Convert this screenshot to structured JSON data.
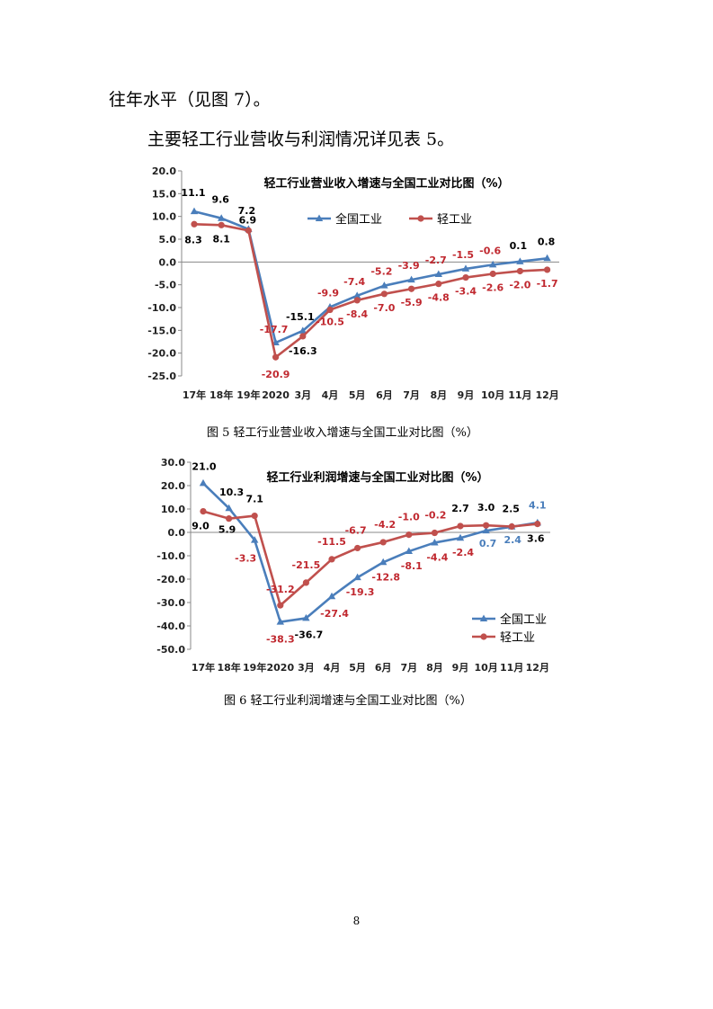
{
  "paragraphs": {
    "p1": "往年水平（见图 7）。",
    "p2": "主要轻工行业营收与利润情况详见表 5。"
  },
  "captions": {
    "fig5": "图 5   轻工行业营业收入增速与全国工业对比图（%）",
    "fig6": "图 6   轻工行业利润增速与全国工业对比图（%）"
  },
  "page_number": "8",
  "chart_data": [
    {
      "type": "line",
      "title": "轻工行业营业收入增速与全国工业对比图（%）",
      "categories": [
        "17年",
        "18年",
        "19年",
        "2020",
        "3月",
        "4月",
        "5月",
        "6月",
        "7月",
        "8月",
        "9月",
        "10月",
        "11月",
        "12月"
      ],
      "ylim": [
        -25,
        20
      ],
      "yticks": [
        "20.0",
        "15.0",
        "10.0",
        "5.0",
        "0.0",
        "-5.0",
        "-10.0",
        "-15.0",
        "-20.0",
        "-25.0"
      ],
      "legend": "top-center",
      "series": [
        {
          "name": "全国工业",
          "color": "#4a7ebb",
          "marker": "triangle",
          "values": [
            11.1,
            9.6,
            7.2,
            -17.7,
            -15.1,
            -9.9,
            -7.4,
            -5.2,
            -3.9,
            -2.7,
            -1.5,
            -0.6,
            0.1,
            0.8
          ],
          "labels": [
            "11.1",
            "9.6",
            "7.2",
            "-17.7",
            "-15.1",
            "-9.9",
            "-7.4",
            "-5.2",
            "-3.9",
            "-2.7",
            "-1.5",
            "-0.6",
            "0.1",
            "0.8"
          ],
          "label_colors": [
            "#000000",
            "#000000",
            "#000000",
            "#c0282f",
            "#000000",
            "#c0282f",
            "#c0282f",
            "#c0282f",
            "#c0282f",
            "#c0282f",
            "#c0282f",
            "#c0282f",
            "#000000",
            "#000000"
          ]
        },
        {
          "name": "轻工业",
          "color": "#c0504d",
          "marker": "circle",
          "values": [
            8.3,
            8.1,
            6.9,
            -20.9,
            -16.3,
            -10.5,
            -8.4,
            -7.0,
            -5.9,
            -4.8,
            -3.4,
            -2.6,
            -2.0,
            -1.7
          ],
          "labels": [
            "8.3",
            "8.1",
            "6.9",
            "-20.9",
            "-16.3",
            "-10.5",
            "-8.4",
            "-7.0",
            "-5.9",
            "-4.8",
            "-3.4",
            "-2.6",
            "-2.0",
            "-1.7"
          ],
          "label_colors": [
            "#000000",
            "#000000",
            "#000000",
            "#c0282f",
            "#000000",
            "#c0282f",
            "#c0282f",
            "#c0282f",
            "#c0282f",
            "#c0282f",
            "#c0282f",
            "#c0282f",
            "#c0282f",
            "#c0282f"
          ]
        }
      ]
    },
    {
      "type": "line",
      "title": "轻工行业利润增速与全国工业对比图（%）",
      "categories": [
        "17年",
        "18年",
        "19年",
        "2020",
        "3月",
        "4月",
        "5月",
        "6月",
        "7月",
        "8月",
        "9月",
        "10月",
        "11月",
        "12月"
      ],
      "ylim": [
        -50,
        30
      ],
      "yticks": [
        "30.0",
        "20.0",
        "10.0",
        "0.0",
        "-10.0",
        "-20.0",
        "-30.0",
        "-40.0",
        "-50.0"
      ],
      "legend": "bottom-right",
      "series": [
        {
          "name": "全国工业",
          "color": "#4a7ebb",
          "marker": "triangle",
          "values": [
            21.0,
            10.3,
            -3.3,
            -38.3,
            -36.7,
            -27.4,
            -19.3,
            -12.8,
            -8.1,
            -4.4,
            -2.4,
            0.7,
            2.4,
            4.1
          ],
          "labels": [
            "21.0",
            "10.3",
            "-3.3",
            "-38.3",
            "-36.7",
            "-27.4",
            "-19.3",
            "-12.8",
            "-8.1",
            "-4.4",
            "-2.4",
            "0.7",
            "2.4",
            "4.1"
          ],
          "label_colors": [
            "#000000",
            "#000000",
            "#c0282f",
            "#c0282f",
            "#000000",
            "#c0282f",
            "#c0282f",
            "#c0282f",
            "#c0282f",
            "#c0282f",
            "#c0282f",
            "#4a7ebb",
            "#4a7ebb",
            "#4a7ebb"
          ]
        },
        {
          "name": "轻工业",
          "color": "#c0504d",
          "marker": "circle",
          "values": [
            9.0,
            5.9,
            7.1,
            -31.2,
            -21.5,
            -11.5,
            -6.7,
            -4.2,
            -1.0,
            -0.2,
            2.7,
            3.0,
            2.5,
            3.6
          ],
          "labels": [
            "9.0",
            "5.9",
            "7.1",
            "-31.2",
            "-21.5",
            "-11.5",
            "-6.7",
            "-4.2",
            "-1.0",
            "-0.2",
            "2.7",
            "3.0",
            "2.5",
            "3.6"
          ],
          "label_colors": [
            "#000000",
            "#000000",
            "#000000",
            "#c0282f",
            "#c0282f",
            "#c0282f",
            "#c0282f",
            "#c0282f",
            "#c0282f",
            "#c0282f",
            "#000000",
            "#000000",
            "#000000",
            "#000000"
          ]
        }
      ]
    }
  ]
}
